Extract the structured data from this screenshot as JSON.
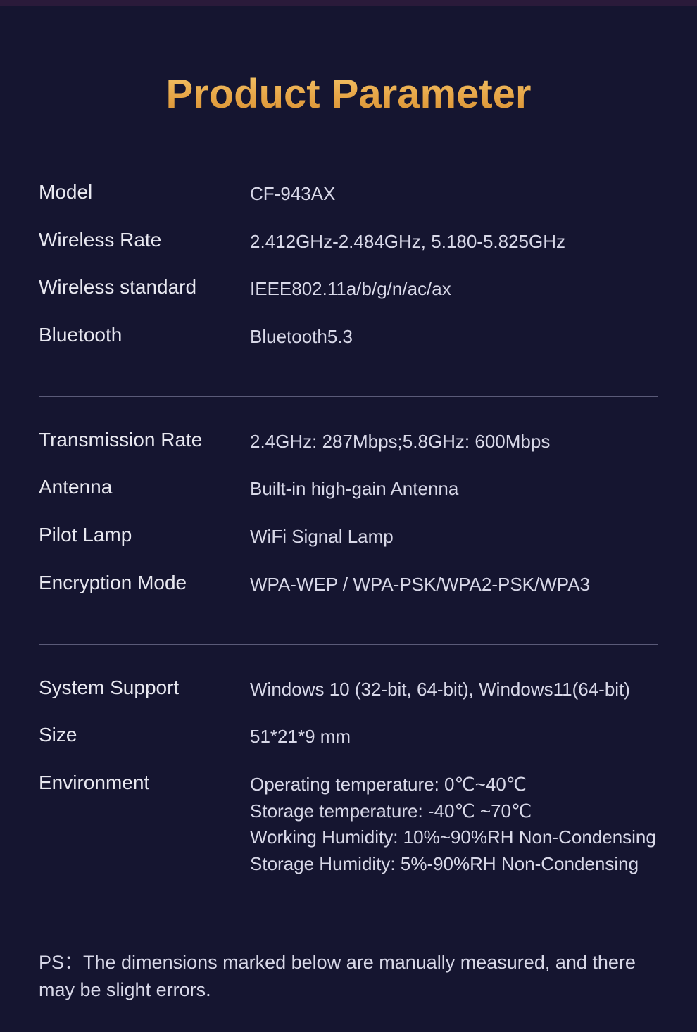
{
  "title": "Product Parameter",
  "colors": {
    "background": "#151530",
    "text": "#e8e8f0",
    "value_text": "#d8d8e8",
    "title_gradient_top": "#f5c86b",
    "title_gradient_mid": "#e8a84a",
    "title_gradient_bottom": "#d89030",
    "divider": "#5a5a78"
  },
  "typography": {
    "title_fontsize": 58,
    "label_fontsize": 28,
    "value_fontsize": 26,
    "ps_fontsize": 27
  },
  "sections": [
    {
      "rows": [
        {
          "label": "Model",
          "value": "CF-943AX"
        },
        {
          "label": "Wireless Rate",
          "value": "2.412GHz-2.484GHz, 5.180-5.825GHz"
        },
        {
          "label": "Wireless standard",
          "value": "IEEE802.11a/b/g/n/ac/ax"
        },
        {
          "label": "Bluetooth",
          "value": "Bluetooth5.3"
        }
      ]
    },
    {
      "rows": [
        {
          "label": "Transmission Rate",
          "value": "2.4GHz: 287Mbps;5.8GHz: 600Mbps"
        },
        {
          "label": "Antenna",
          "value": "Built-in high-gain Antenna"
        },
        {
          "label": "Pilot Lamp",
          "value": "WiFi Signal Lamp"
        },
        {
          "label": "Encryption Mode",
          "value": "WPA-WEP / WPA-PSK/WPA2-PSK/WPA3"
        }
      ]
    },
    {
      "rows": [
        {
          "label": "System Support",
          "value": "Windows 10 (32-bit, 64-bit), Windows11(64-bit)"
        },
        {
          "label": "Size",
          "value": "51*21*9 mm"
        },
        {
          "label": "Environment",
          "value": "Operating temperature:  0℃~40℃\nStorage temperature:  -40℃ ~70℃\nWorking Humidity:  10%~90%RH Non-Condensing\nStorage Humidity:   5%-90%RH Non-Condensing"
        }
      ]
    }
  ],
  "ps": "PS：The dimensions marked below are manually measured, and there may be slight errors."
}
